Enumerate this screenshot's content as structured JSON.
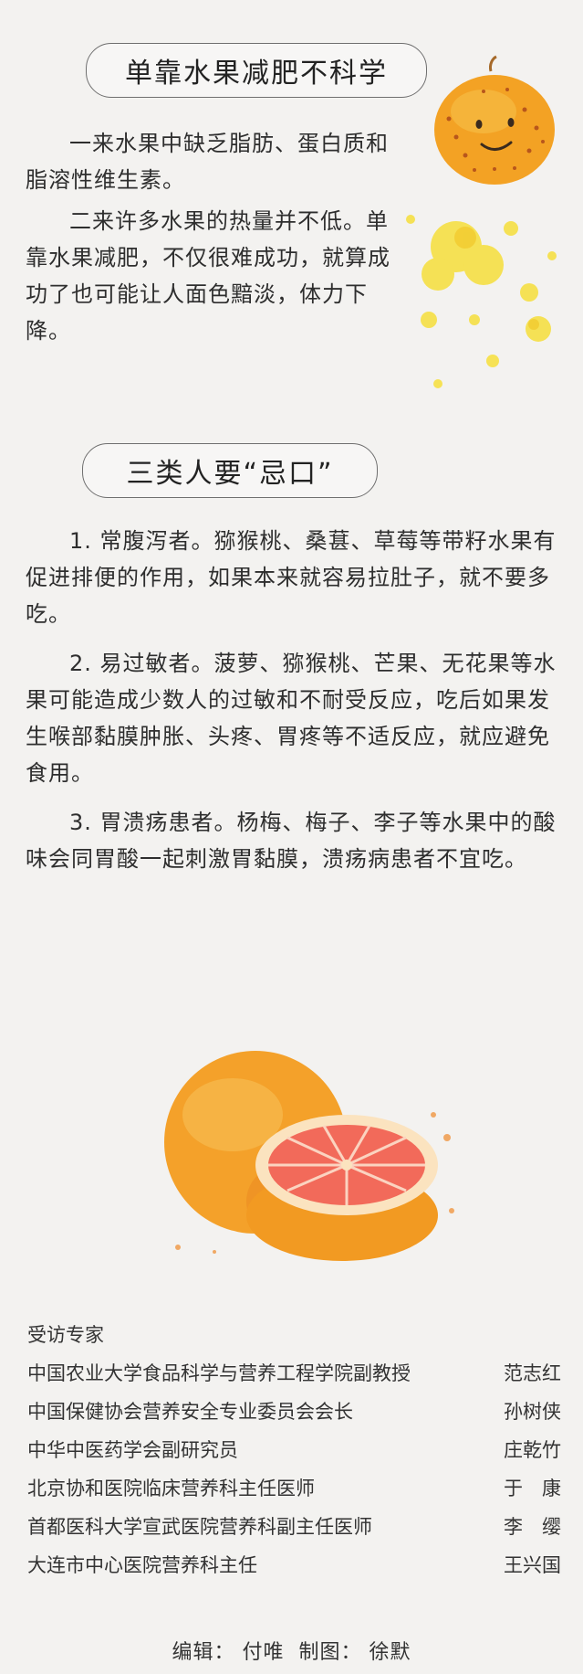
{
  "section1": {
    "heading": "单靠水果减肥不科学",
    "para1": "一来水果中缺乏脂肪、蛋白质和脂溶性维生素。",
    "para2": "二来许多水果的热量并不低。单靠水果减肥，不仅很难成功，就算成功了也可能让人面色黯淡，体力下降。"
  },
  "section2": {
    "heading": "三类人要“忌口”",
    "items": [
      "1. 常腹泻者。猕猴桃、桑葚、草莓等带籽水果有促进排便的作用，如果本来就容易拉肚子，就不要多吃。",
      "2. 易过敏者。菠萝、猕猴桃、芒果、无花果等水果可能造成少数人的过敏和不耐受反应，吃后如果发生喉部黏膜肿胀、头疼、胃疼等不适反应，就应避免食用。",
      "3. 胃溃疡患者。杨梅、梅子、李子等水果中的酸味会同胃酸一起刺激胃黏膜，溃疡病患者不宜吃。"
    ]
  },
  "experts": {
    "title": "受访专家",
    "rows": [
      {
        "org": "中国农业大学食品科学与营养工程学院副教授",
        "name": "范志红"
      },
      {
        "org": "中国保健协会营养安全专业委员会会长",
        "name": "孙树侠"
      },
      {
        "org": "中华中医药学会副研究员",
        "name": "庄乾竹"
      },
      {
        "org": "北京协和医院临床营养科主任医师",
        "name": "于　康"
      },
      {
        "org": "首都医科大学宣武医院营养科副主任医师",
        "name": "李　缨"
      },
      {
        "org": "大连市中心医院营养科主任",
        "name": "王兴国"
      }
    ]
  },
  "credits": {
    "editor_label": "编辑：",
    "editor": "付唯",
    "design_label": "制图：",
    "designer": "徐默"
  },
  "colors": {
    "orange": "#f2a020",
    "splash": "#f6df3a",
    "grapefruit_flesh": "#f0685a"
  }
}
